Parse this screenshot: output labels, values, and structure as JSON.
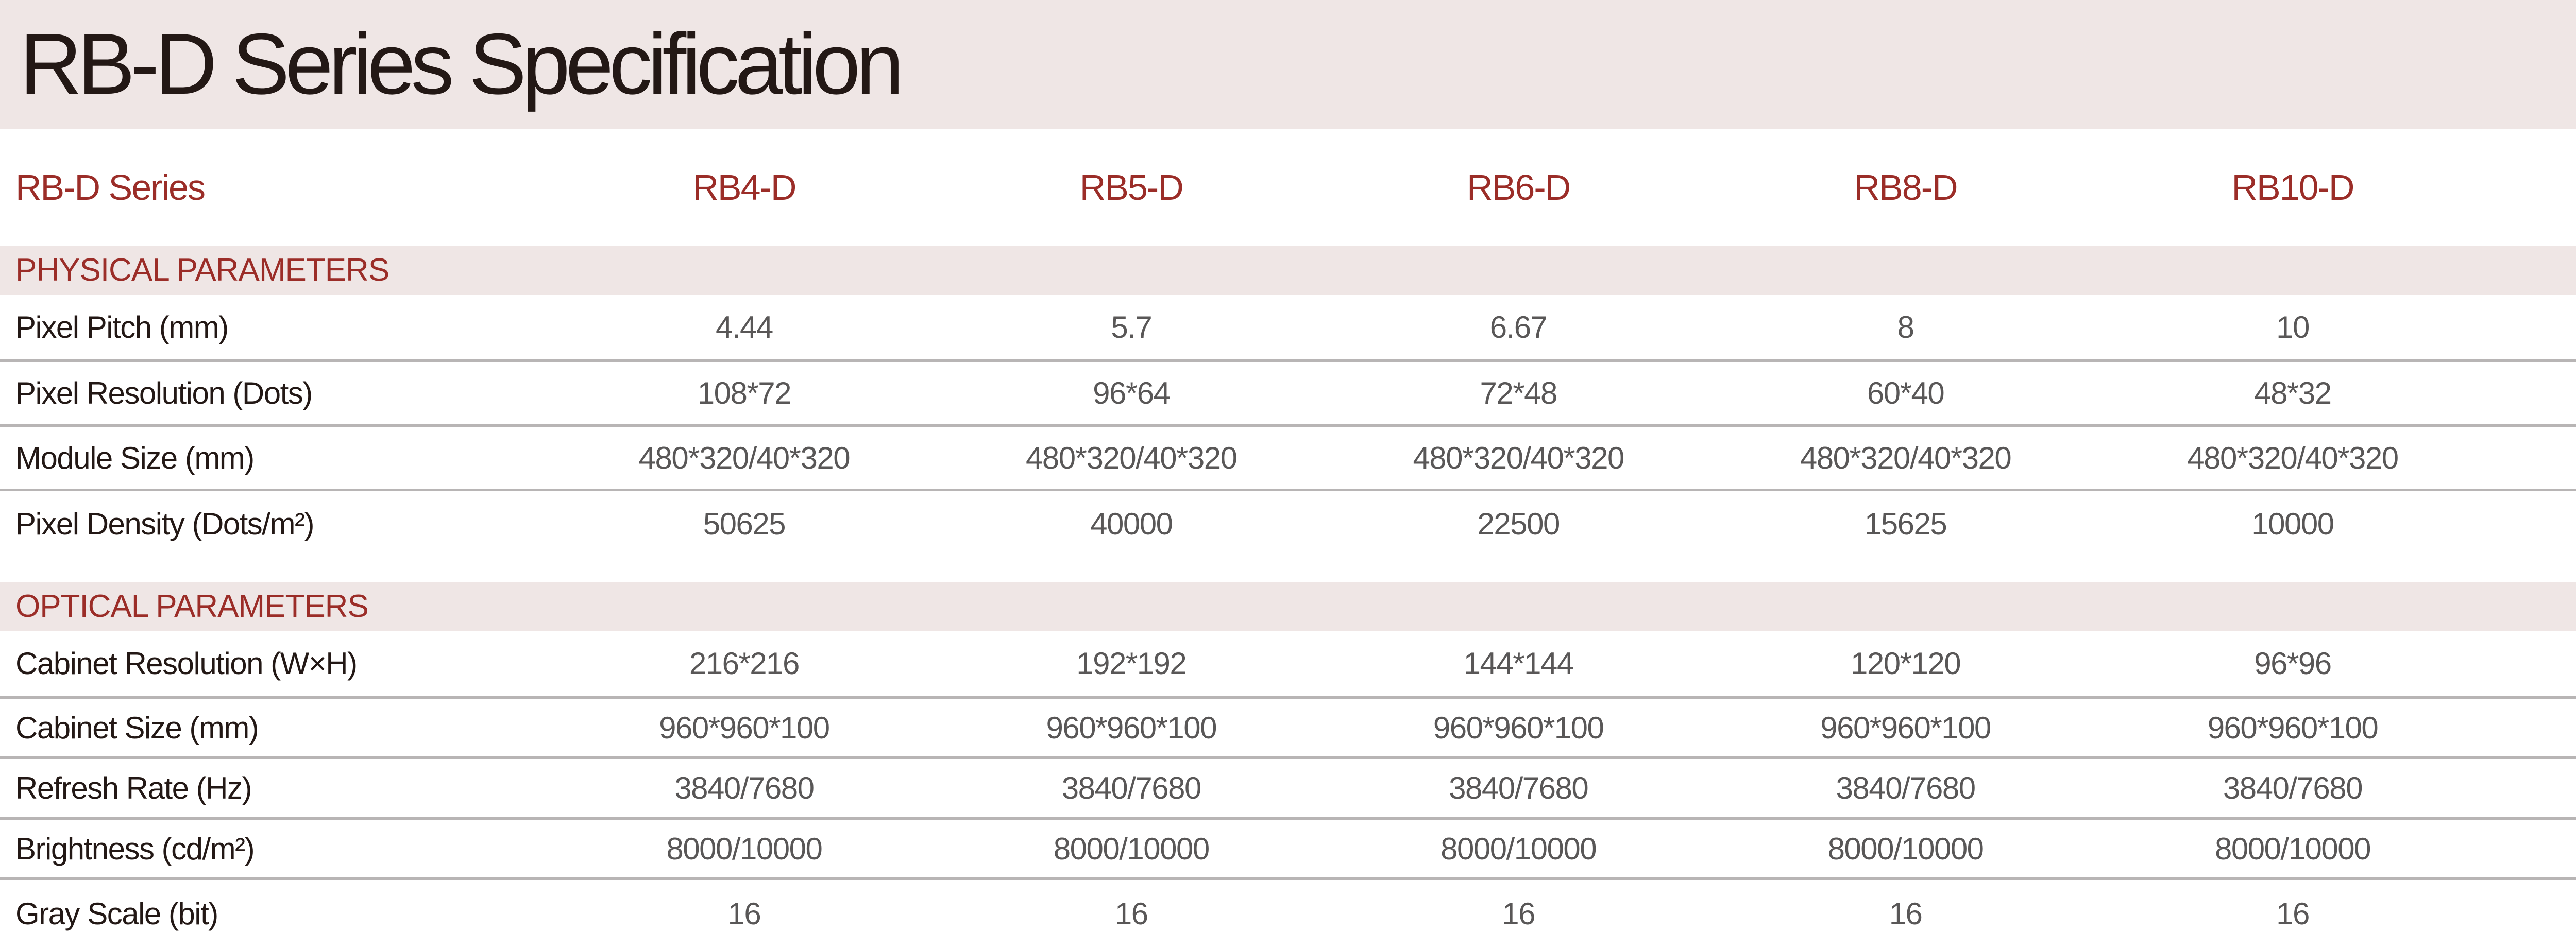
{
  "title": "RB-D Series Specification",
  "header": {
    "label": "RB-D Series",
    "models": [
      "RB4-D",
      "RB5-D",
      "RB6-D",
      "RB8-D",
      "RB10-D"
    ]
  },
  "colors": {
    "accent": "#9b2d28",
    "band": "#efe6e5",
    "title": "#231815",
    "value": "#595757"
  },
  "sections": [
    {
      "title": "PHYSICAL PARAMETERS",
      "rows": [
        {
          "label": "Pixel Pitch (mm)",
          "values": [
            "4.44",
            "5.7",
            "6.67",
            "8",
            "10"
          ]
        },
        {
          "label": "Pixel Resolution (Dots)",
          "values": [
            "108*72",
            "96*64",
            "72*48",
            "60*40",
            "48*32"
          ]
        },
        {
          "label": "Module Size (mm)",
          "values": [
            "480*320/40*320",
            "480*320/40*320",
            "480*320/40*320",
            "480*320/40*320",
            "480*320/40*320"
          ]
        },
        {
          "label": "Pixel Density (Dots/m²)",
          "values": [
            "50625",
            "40000",
            "22500",
            "15625",
            "10000"
          ]
        }
      ]
    },
    {
      "title": "OPTICAL PARAMETERS",
      "rows": [
        {
          "label": "Cabinet Resolution (W×H)",
          "values": [
            "216*216",
            "192*192",
            "144*144",
            "120*120",
            "96*96"
          ]
        },
        {
          "label": "Cabinet Size (mm)",
          "values": [
            "960*960*100",
            "960*960*100",
            "960*960*100",
            "960*960*100",
            "960*960*100"
          ]
        },
        {
          "label": "Refresh Rate (Hz)",
          "values": [
            "3840/7680",
            "3840/7680",
            "3840/7680",
            "3840/7680",
            "3840/7680"
          ]
        },
        {
          "label": "Brightness (cd/m²)",
          "values": [
            "8000/10000",
            "8000/10000",
            "8000/10000",
            "8000/10000",
            "8000/10000"
          ]
        },
        {
          "label": "Gray Scale (bit)",
          "values": [
            "16",
            "16",
            "16",
            "16",
            "16"
          ]
        }
      ]
    }
  ]
}
